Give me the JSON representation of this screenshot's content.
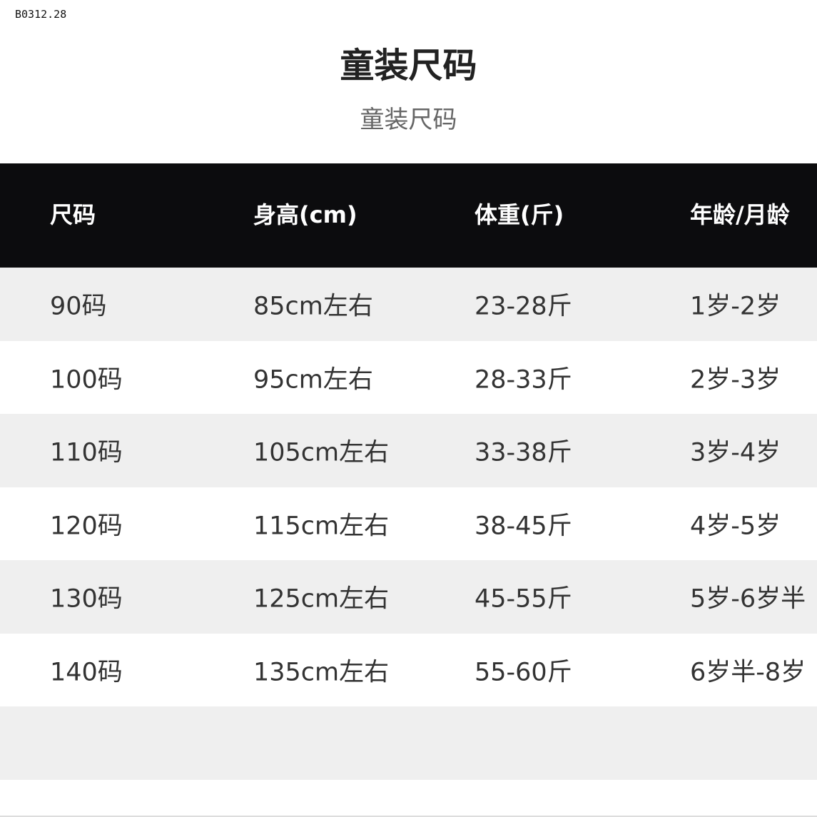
{
  "code": "B0312.28",
  "title": "童装尺码",
  "subtitle": "童装尺码",
  "table": {
    "headers": [
      "尺码",
      "身高(cm)",
      "体重(斤)",
      "年龄/月龄"
    ],
    "rows": [
      [
        "90码",
        "85cm左右",
        "23-28斤",
        "1岁-2岁"
      ],
      [
        "100码",
        "95cm左右",
        "28-33斤",
        "2岁-3岁"
      ],
      [
        "110码",
        "105cm左右",
        "33-38斤",
        "3岁-4岁"
      ],
      [
        "120码",
        "115cm左右",
        "38-45斤",
        "4岁-5岁"
      ],
      [
        "130码",
        "125cm左右",
        "45-55斤",
        "5岁-6岁半"
      ],
      [
        "140码",
        "135cm左右",
        "55-60斤",
        "6岁半-8岁"
      ],
      [
        "",
        "",
        "",
        ""
      ]
    ]
  },
  "colors": {
    "header_bg": "#0c0c0e",
    "stripe": "#efefef"
  }
}
